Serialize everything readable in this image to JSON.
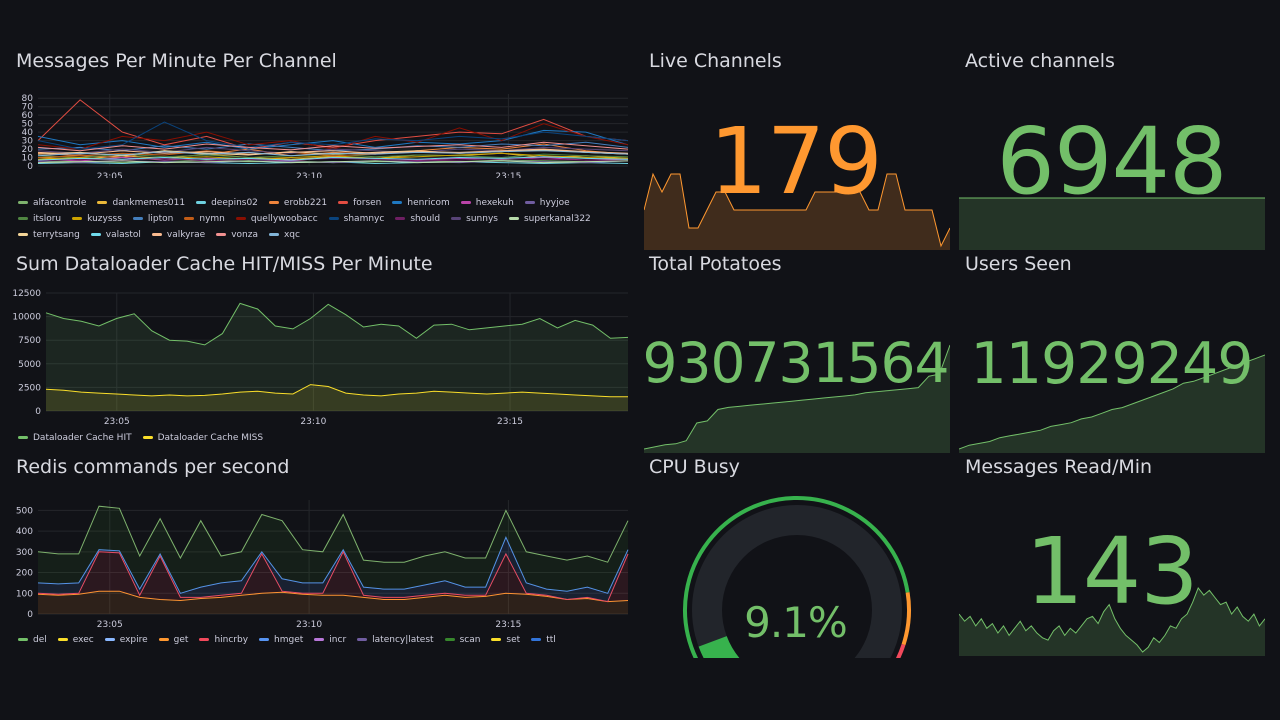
{
  "panels": {
    "messages": {
      "title": "Messages Per Minute Per Channel"
    },
    "cache": {
      "title": "Sum Dataloader Cache HIT/MISS Per Minute"
    },
    "redis": {
      "title": "Redis commands per second"
    },
    "live": {
      "title": "Live Channels",
      "value": "179",
      "color": "#FF9830"
    },
    "active": {
      "title": "Active channels",
      "value": "6948",
      "color": "#73BF69"
    },
    "potatoes": {
      "title": "Total Potatoes",
      "value": "930731564",
      "color": "#73BF69"
    },
    "users": {
      "title": "Users Seen",
      "value": "11929249",
      "color": "#73BF69"
    },
    "cpu": {
      "title": "CPU Busy",
      "value": "9.1%",
      "percent": 9.1,
      "color": "#73BF69"
    },
    "msgread": {
      "title": "Messages Read/Min",
      "value": "143",
      "color": "#73BF69"
    }
  },
  "chart_data": [
    {
      "id": "messages",
      "type": "line",
      "title": "Messages Per Minute Per Channel",
      "x_start_min": 3.2,
      "x_end_min": 18,
      "x_ticks": [
        "23:05",
        "23:10",
        "23:15"
      ],
      "x_tick_min": [
        5,
        10,
        15
      ],
      "ylim": [
        0,
        85
      ],
      "y_ticks": [
        0,
        10,
        20,
        30,
        40,
        50,
        60,
        70,
        80
      ],
      "grid": true,
      "legend": "bottom",
      "series": [
        {
          "name": "alfacontrole",
          "color": "#7EB26D",
          "values": [
            5,
            6,
            4,
            5,
            7,
            5,
            6,
            4,
            5,
            6,
            5,
            7,
            6,
            5,
            6
          ]
        },
        {
          "name": "dankmemes011",
          "color": "#EAB839",
          "values": [
            10,
            8,
            12,
            9,
            14,
            10,
            8,
            11,
            9,
            13,
            12,
            15,
            10,
            12,
            9
          ]
        },
        {
          "name": "deepins02",
          "color": "#6ED0E0",
          "values": [
            3,
            4,
            3,
            5,
            4,
            3,
            4,
            5,
            3,
            4,
            5,
            4,
            3,
            4,
            3
          ]
        },
        {
          "name": "erobb221",
          "color": "#EF843C",
          "values": [
            15,
            12,
            10,
            18,
            14,
            20,
            12,
            16,
            14,
            18,
            22,
            20,
            26,
            18,
            14
          ]
        },
        {
          "name": "forsen",
          "color": "#E24D42",
          "values": [
            30,
            78,
            40,
            25,
            35,
            20,
            28,
            22,
            30,
            35,
            40,
            38,
            55,
            35,
            30
          ]
        },
        {
          "name": "henricom",
          "color": "#1F78C1",
          "values": [
            35,
            25,
            30,
            22,
            28,
            20,
            25,
            30,
            22,
            28,
            26,
            30,
            42,
            40,
            25
          ]
        },
        {
          "name": "hexekuh",
          "color": "#BA43A9",
          "values": [
            8,
            6,
            10,
            7,
            9,
            8,
            6,
            10,
            8,
            7,
            9,
            8,
            10,
            7,
            8
          ]
        },
        {
          "name": "hyyjoe",
          "color": "#705DA0",
          "values": [
            5,
            4,
            6,
            5,
            4,
            6,
            5,
            4,
            6,
            5,
            4,
            6,
            5,
            4,
            6
          ]
        },
        {
          "name": "itsloru",
          "color": "#508642",
          "values": [
            12,
            10,
            14,
            11,
            13,
            10,
            12,
            14,
            11,
            13,
            12,
            10,
            14,
            12,
            11
          ]
        },
        {
          "name": "kuzysss",
          "color": "#CCA300",
          "values": [
            8,
            10,
            7,
            9,
            11,
            8,
            10,
            12,
            9,
            11,
            13,
            15,
            12,
            10,
            9
          ]
        },
        {
          "name": "lipton",
          "color": "#447EBC",
          "values": [
            20,
            22,
            18,
            24,
            20,
            26,
            22,
            18,
            20,
            24,
            22,
            26,
            24,
            28,
            22
          ]
        },
        {
          "name": "nymn",
          "color": "#C15C17",
          "values": [
            10,
            12,
            15,
            13,
            18,
            14,
            16,
            12,
            14,
            17,
            15,
            18,
            20,
            16,
            14
          ]
        },
        {
          "name": "quellywoobacc",
          "color": "#890F02",
          "values": [
            25,
            20,
            35,
            30,
            40,
            25,
            30,
            20,
            35,
            28,
            45,
            30,
            50,
            35,
            25
          ]
        },
        {
          "name": "shamnyc",
          "color": "#0A437C",
          "values": [
            30,
            20,
            25,
            52,
            30,
            22,
            28,
            25,
            32,
            30,
            35,
            32,
            40,
            35,
            30
          ]
        },
        {
          "name": "should",
          "color": "#6D1F62",
          "values": [
            6,
            8,
            7,
            9,
            6,
            8,
            7,
            9,
            8,
            6,
            7,
            9,
            8,
            7,
            6
          ]
        },
        {
          "name": "sunnys",
          "color": "#584477",
          "values": [
            18,
            15,
            20,
            16,
            22,
            18,
            15,
            20,
            18,
            16,
            20,
            18,
            22,
            20,
            18
          ]
        },
        {
          "name": "superkanal322",
          "color": "#B7DBAB",
          "values": [
            4,
            5,
            6,
            4,
            5,
            6,
            4,
            5,
            6,
            4,
            5,
            6,
            4,
            5,
            6
          ]
        },
        {
          "name": "terrytsang",
          "color": "#F4D598",
          "values": [
            14,
            16,
            12,
            18,
            15,
            13,
            17,
            14,
            16,
            18,
            15,
            17,
            19,
            16,
            14
          ]
        },
        {
          "name": "valastol",
          "color": "#70DBED",
          "values": [
            7,
            9,
            8,
            10,
            8,
            9,
            7,
            10,
            9,
            8,
            10,
            9,
            11,
            9,
            8
          ]
        },
        {
          "name": "valkyrae",
          "color": "#F9BA8F",
          "values": [
            16,
            14,
            18,
            15,
            17,
            14,
            16,
            18,
            15,
            17,
            16,
            18,
            20,
            17,
            15
          ]
        },
        {
          "name": "vonza",
          "color": "#F29191",
          "values": [
            22,
            18,
            24,
            20,
            26,
            22,
            19,
            24,
            21,
            23,
            25,
            22,
            28,
            24,
            20
          ]
        },
        {
          "name": "xqc",
          "color": "#82B5D8",
          "values": [
            12,
            15,
            13,
            17,
            14,
            16,
            12,
            15,
            14,
            16,
            15,
            17,
            18,
            16,
            14
          ]
        }
      ]
    },
    {
      "id": "cache",
      "type": "area",
      "title": "Sum Dataloader Cache HIT/MISS Per Minute",
      "x_start_min": 3.2,
      "x_end_min": 18,
      "x_ticks": [
        "23:05",
        "23:10",
        "23:15"
      ],
      "x_tick_min": [
        5,
        10,
        15
      ],
      "ylim": [
        0,
        12500
      ],
      "y_ticks": [
        0,
        2500,
        5000,
        7500,
        10000,
        12500
      ],
      "grid": true,
      "legend": "bottom",
      "series": [
        {
          "name": "Dataloader Cache HIT",
          "color": "#73BF69",
          "values": [
            10400,
            9800,
            9500,
            9000,
            9800,
            10300,
            8500,
            7500,
            7400,
            7000,
            8200,
            11400,
            10800,
            9000,
            8700,
            9800,
            11300,
            10200,
            8900,
            9200,
            9000,
            7700,
            9100,
            9200,
            8600,
            8800,
            9000,
            9200,
            9800,
            8800,
            9600,
            9100,
            7700,
            7800
          ]
        },
        {
          "name": "Dataloader Cache MISS",
          "color": "#FADE2A",
          "values": [
            2300,
            2200,
            2000,
            1900,
            1800,
            1700,
            1600,
            1700,
            1600,
            1650,
            1800,
            2000,
            2100,
            1900,
            1800,
            2800,
            2600,
            1900,
            1700,
            1600,
            1800,
            1900,
            2100,
            2000,
            1900,
            1800,
            1900,
            2000,
            1900,
            1800,
            1700,
            1600,
            1500,
            1500
          ]
        }
      ]
    },
    {
      "id": "redis",
      "type": "area",
      "stacked": true,
      "title": "Redis commands per second",
      "x_start_min": 3.2,
      "x_end_min": 18,
      "x_ticks": [
        "23:05",
        "23:10",
        "23:15"
      ],
      "x_tick_min": [
        5,
        10,
        15
      ],
      "ylim": [
        0,
        550
      ],
      "y_ticks": [
        0,
        100,
        200,
        300,
        400,
        500
      ],
      "grid": true,
      "legend": "bottom",
      "series": [
        {
          "name": "del",
          "color": "#73BF69",
          "values": null
        },
        {
          "name": "exec",
          "color": "#FADE2A",
          "values": null
        },
        {
          "name": "expire",
          "color": "#8AB8FF",
          "values": null
        },
        {
          "name": "get",
          "color": "#FF9830",
          "values": [
            95,
            90,
            95,
            110,
            110,
            80,
            70,
            65,
            75,
            80,
            90,
            100,
            105,
            95,
            90,
            90,
            80,
            70,
            70,
            80,
            90,
            80,
            85,
            100,
            95,
            85,
            70,
            75,
            60,
            65
          ]
        },
        {
          "name": "hincrby",
          "color": "#F2495C",
          "values": [
            5,
            5,
            5,
            190,
            185,
            10,
            210,
            15,
            5,
            10,
            10,
            190,
            5,
            5,
            10,
            210,
            10,
            10,
            10,
            10,
            10,
            10,
            5,
            190,
            5,
            5,
            0,
            5,
            0,
            225
          ]
        },
        {
          "name": "hmget",
          "color": "#5794F2",
          "values": [
            50,
            50,
            50,
            10,
            10,
            30,
            10,
            20,
            50,
            60,
            60,
            10,
            60,
            50,
            50,
            10,
            40,
            40,
            40,
            50,
            60,
            40,
            40,
            80,
            50,
            30,
            40,
            50,
            40,
            20
          ]
        },
        {
          "name": "incr",
          "color": "#B877D9",
          "values": null
        },
        {
          "name": "latency|latest",
          "color": "#705DA0",
          "values": null
        },
        {
          "name": "scan",
          "color": "#37872D",
          "line": "#7EB26D",
          "values": [
            150,
            145,
            140,
            210,
            205,
            160,
            170,
            170,
            320,
            130,
            140,
            180,
            280,
            160,
            150,
            170,
            130,
            130,
            130,
            140,
            140,
            140,
            140,
            130,
            150,
            160,
            150,
            150,
            150,
            140
          ]
        },
        {
          "name": "set",
          "color": "#FADE2A",
          "values": null
        },
        {
          "name": "ttl",
          "color": "#3274D9",
          "values": null
        }
      ]
    },
    {
      "id": "live-spark",
      "type": "area",
      "series": [
        {
          "name": "Live Channels",
          "values": [
            178,
            180,
            179,
            180,
            180,
            177,
            177,
            178,
            179,
            179,
            178,
            178,
            178,
            178,
            178,
            178,
            178,
            178,
            178,
            179,
            179,
            179,
            179,
            179,
            179,
            178,
            178,
            180,
            180,
            178,
            178,
            178,
            178,
            176,
            177
          ]
        }
      ]
    },
    {
      "id": "active-spark",
      "type": "area",
      "series": [
        {
          "name": "Active channels",
          "values": [
            6948,
            6948,
            6948,
            6948,
            6948,
            6948,
            6948,
            6948,
            6948,
            6948
          ]
        }
      ]
    },
    {
      "id": "potatoes-spark",
      "type": "area",
      "series": [
        {
          "name": "Total Potatoes",
          "values": [
            0,
            2,
            4,
            5,
            8,
            25,
            27,
            38,
            40,
            41,
            42,
            43,
            44,
            45,
            46,
            47,
            48,
            49,
            50,
            51,
            52,
            54,
            55,
            56,
            57,
            58,
            59,
            70,
            72,
            100
          ]
        }
      ]
    },
    {
      "id": "users-spark",
      "type": "area",
      "series": [
        {
          "name": "Users Seen",
          "values": [
            0,
            4,
            6,
            8,
            12,
            14,
            16,
            18,
            20,
            24,
            26,
            28,
            32,
            34,
            38,
            42,
            44,
            48,
            52,
            56,
            60,
            64,
            70,
            72,
            76,
            80,
            84,
            88,
            92,
            96,
            100
          ]
        }
      ]
    },
    {
      "id": "msgread-spark",
      "type": "area",
      "series": [
        {
          "name": "Messages Read/Min",
          "values": [
            40,
            34,
            38,
            30,
            36,
            28,
            32,
            24,
            30,
            22,
            28,
            34,
            26,
            30,
            24,
            20,
            18,
            26,
            30,
            22,
            28,
            24,
            30,
            36,
            38,
            32,
            42,
            48,
            36,
            28,
            22,
            18,
            14,
            8,
            12,
            20,
            16,
            22,
            30,
            28,
            36,
            40,
            50,
            62,
            56,
            60,
            54,
            48,
            50,
            40,
            46,
            38,
            34,
            40,
            30,
            36
          ]
        }
      ]
    }
  ]
}
